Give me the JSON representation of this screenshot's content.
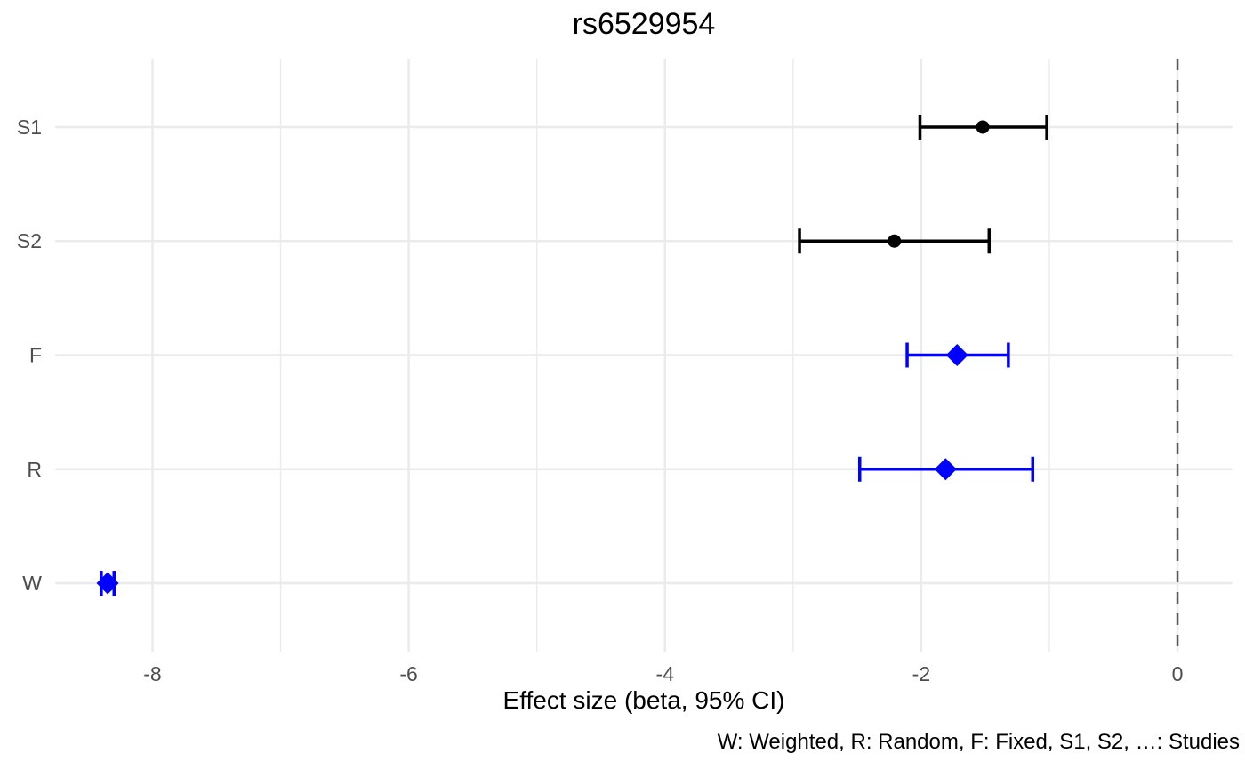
{
  "title": "rs6529954",
  "xlabel": "Effect size (beta, 95% CI)",
  "caption": "W: Weighted, R: Random, F: Fixed, S1, S2, …: Studies",
  "colors": {
    "study_marker": "#000000",
    "summary_marker": "#0000FF",
    "gridline": "#EBEBEB",
    "axis_text": "#4D4D4D",
    "reference_line": "#595959",
    "background": "#FFFFFF",
    "text": "#000000"
  },
  "chart_data": {
    "type": "scatter",
    "subtype": "forest_plot",
    "title": "rs6529954",
    "xlabel": "Effect size (beta, 95% CI)",
    "ylabel": "",
    "caption": "W: Weighted, R: Random, F: Fixed, S1, S2, …: Studies",
    "legend": "none",
    "grid": true,
    "xlim": [
      -8.76,
      0.43
    ],
    "xticks": [
      -8,
      -6,
      -4,
      -2,
      0
    ],
    "xtick_labels": [
      "-8",
      "-6",
      "-4",
      "-2",
      "0"
    ],
    "x_minor_ticks": [
      -7,
      -5,
      -3,
      -1
    ],
    "reference_line_x": 0,
    "categories": [
      "S1",
      "S2",
      "F",
      "R",
      "W"
    ],
    "points": [
      {
        "label": "S1",
        "beta": -1.52,
        "ci_low": -2.01,
        "ci_high": -1.02,
        "marker": "circle",
        "color": "#000000"
      },
      {
        "label": "S2",
        "beta": -2.21,
        "ci_low": -2.95,
        "ci_high": -1.47,
        "marker": "circle",
        "color": "#000000"
      },
      {
        "label": "F",
        "beta": -1.72,
        "ci_low": -2.11,
        "ci_high": -1.32,
        "marker": "diamond",
        "color": "#0000FF"
      },
      {
        "label": "R",
        "beta": -1.81,
        "ci_low": -2.48,
        "ci_high": -1.13,
        "marker": "diamond",
        "color": "#0000FF"
      },
      {
        "label": "W",
        "beta": -8.35,
        "ci_low": -8.4,
        "ci_high": -8.3,
        "marker": "diamond",
        "color": "#0000FF"
      }
    ]
  }
}
